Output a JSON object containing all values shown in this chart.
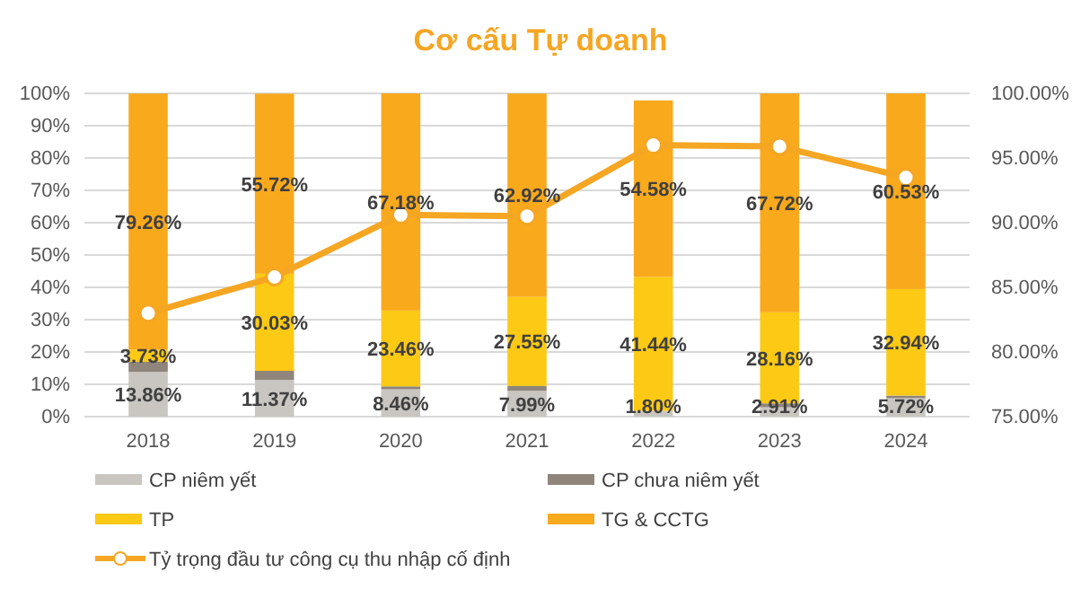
{
  "chart_data": {
    "type": "bar",
    "title": "Cơ cấu Tự doanh",
    "stacked": true,
    "categories": [
      "2018",
      "2019",
      "2020",
      "2021",
      "2022",
      "2023",
      "2024"
    ],
    "series": [
      {
        "name": "CP niêm yết",
        "color": "#c9c5c0",
        "values": [
          13.86,
          11.37,
          8.46,
          7.99,
          1.8,
          2.91,
          5.72
        ],
        "value_labels": [
          "13.86%",
          "11.37%",
          "8.46%",
          "7.99%",
          "1.80%",
          "2.91%",
          "5.72%"
        ]
      },
      {
        "name": "CP chưa niêm yết",
        "color": "#8f857a",
        "values": [
          3.1,
          2.8,
          0.9,
          1.5,
          null,
          1.2,
          0.8
        ]
      },
      {
        "name": "TP",
        "color": "#fcc914",
        "values": [
          3.73,
          30.03,
          23.46,
          27.55,
          41.44,
          28.16,
          32.94
        ],
        "value_labels": [
          "3.73%",
          "30.03%",
          "23.46%",
          "27.55%",
          "41.44%",
          "28.16%",
          "32.94%"
        ]
      },
      {
        "name": "TG & CCTG",
        "color": "#f9a91c",
        "values": [
          79.26,
          55.72,
          67.18,
          62.92,
          54.58,
          67.72,
          60.53
        ],
        "value_labels": [
          "79.26%",
          "55.72%",
          "67.18%",
          "62.92%",
          "54.58%",
          "67.72%",
          "60.53%"
        ]
      },
      {
        "name": "Tỷ trọng đầu tư công cụ thu nhập cố định",
        "type": "line",
        "axis": "y2",
        "marker": "circle",
        "color": "#f5a623",
        "values": [
          83.0,
          85.8,
          90.6,
          90.5,
          96.0,
          95.9,
          93.5
        ]
      }
    ],
    "ylim": [
      0,
      100
    ],
    "yticks": [
      {
        "value": 0,
        "label": "0%"
      },
      {
        "value": 10,
        "label": "10%"
      },
      {
        "value": 20,
        "label": "20%"
      },
      {
        "value": 30,
        "label": "30%"
      },
      {
        "value": 40,
        "label": "40%"
      },
      {
        "value": 50,
        "label": "50%"
      },
      {
        "value": 60,
        "label": "60%"
      },
      {
        "value": 70,
        "label": "70%"
      },
      {
        "value": 80,
        "label": "80%"
      },
      {
        "value": 90,
        "label": "90%"
      },
      {
        "value": 100,
        "label": "100%"
      }
    ],
    "y2lim": [
      75,
      100
    ],
    "y2ticks": [
      {
        "value": 75,
        "label": "75.00%"
      },
      {
        "value": 80,
        "label": "80.00%"
      },
      {
        "value": 85,
        "label": "85.00%"
      },
      {
        "value": 90,
        "label": "90.00%"
      },
      {
        "value": 95,
        "label": "95.00%"
      },
      {
        "value": 100,
        "label": "100.00%"
      }
    ],
    "grid": "y",
    "legend": "bottom"
  }
}
